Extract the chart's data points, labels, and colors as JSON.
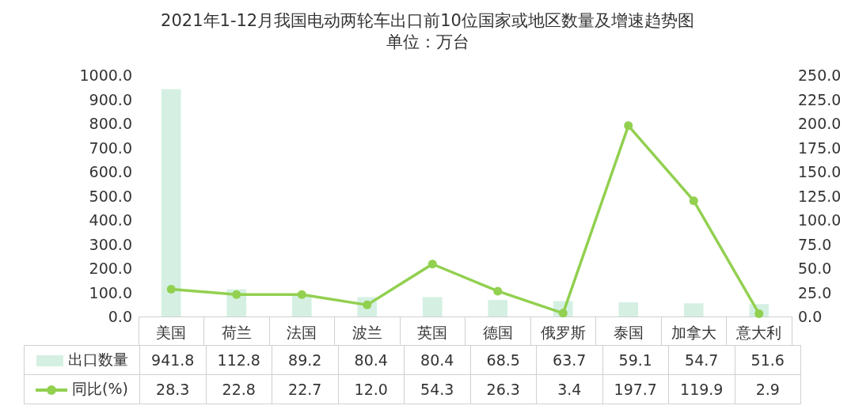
{
  "chart_data": {
    "type": "bar",
    "title": "2021年1-12月我国电动两轮车出口前10位国家或地区数量及增速趋势图",
    "subtitle": "单位：万台",
    "categories": [
      "美国",
      "荷兰",
      "法国",
      "波兰",
      "英国",
      "德国",
      "俄罗斯",
      "泰国",
      "加拿大",
      "意大利"
    ],
    "series": [
      {
        "name": "出口数量",
        "color": "#d5f0e3",
        "values": [
          941.8,
          112.8,
          89.2,
          80.4,
          80.4,
          68.5,
          63.7,
          59.1,
          54.7,
          51.6
        ],
        "value_labels": [
          "941.8",
          "112.8",
          "89.2",
          "80.4",
          "80.4",
          "68.5",
          "63.7",
          "59.1",
          "54.7",
          "51.6"
        ]
      },
      {
        "name": "同比(%)",
        "type": "line",
        "axis": "y2",
        "color": "#92d050",
        "marker": "circle",
        "values": [
          28.3,
          22.8,
          22.7,
          12.0,
          54.3,
          26.3,
          3.4,
          197.7,
          119.9,
          2.9
        ],
        "value_labels": [
          "28.3",
          "22.8",
          "22.7",
          "12.0",
          "54.3",
          "26.3",
          "3.4",
          "197.7",
          "119.9",
          "2.9"
        ]
      }
    ],
    "ylim": [
      0,
      1000
    ],
    "yticks": [
      {
        "value": 0,
        "label": "0.0"
      },
      {
        "value": 100,
        "label": "100.0"
      },
      {
        "value": 200,
        "label": "200.0"
      },
      {
        "value": 300,
        "label": "300.0"
      },
      {
        "value": 400,
        "label": "400.0"
      },
      {
        "value": 500,
        "label": "500.0"
      },
      {
        "value": 600,
        "label": "600.0"
      },
      {
        "value": 700,
        "label": "700.0"
      },
      {
        "value": 800,
        "label": "800.0"
      },
      {
        "value": 900,
        "label": "900.0"
      },
      {
        "value": 1000,
        "label": "1000.0"
      }
    ],
    "y2lim": [
      0,
      250
    ],
    "y2ticks": [
      {
        "value": 0,
        "label": "0.0"
      },
      {
        "value": 25,
        "label": "25.0"
      },
      {
        "value": 50,
        "label": "50.0"
      },
      {
        "value": 75,
        "label": "75.0"
      },
      {
        "value": 100,
        "label": "100.0"
      },
      {
        "value": 125,
        "label": "125.0"
      },
      {
        "value": 150,
        "label": "150.0"
      },
      {
        "value": 175,
        "label": "175.0"
      },
      {
        "value": 200,
        "label": "200.0"
      },
      {
        "value": 225,
        "label": "225.0"
      },
      {
        "value": 250,
        "label": "250.0"
      }
    ],
    "legend": "bottom left",
    "grid": false
  }
}
